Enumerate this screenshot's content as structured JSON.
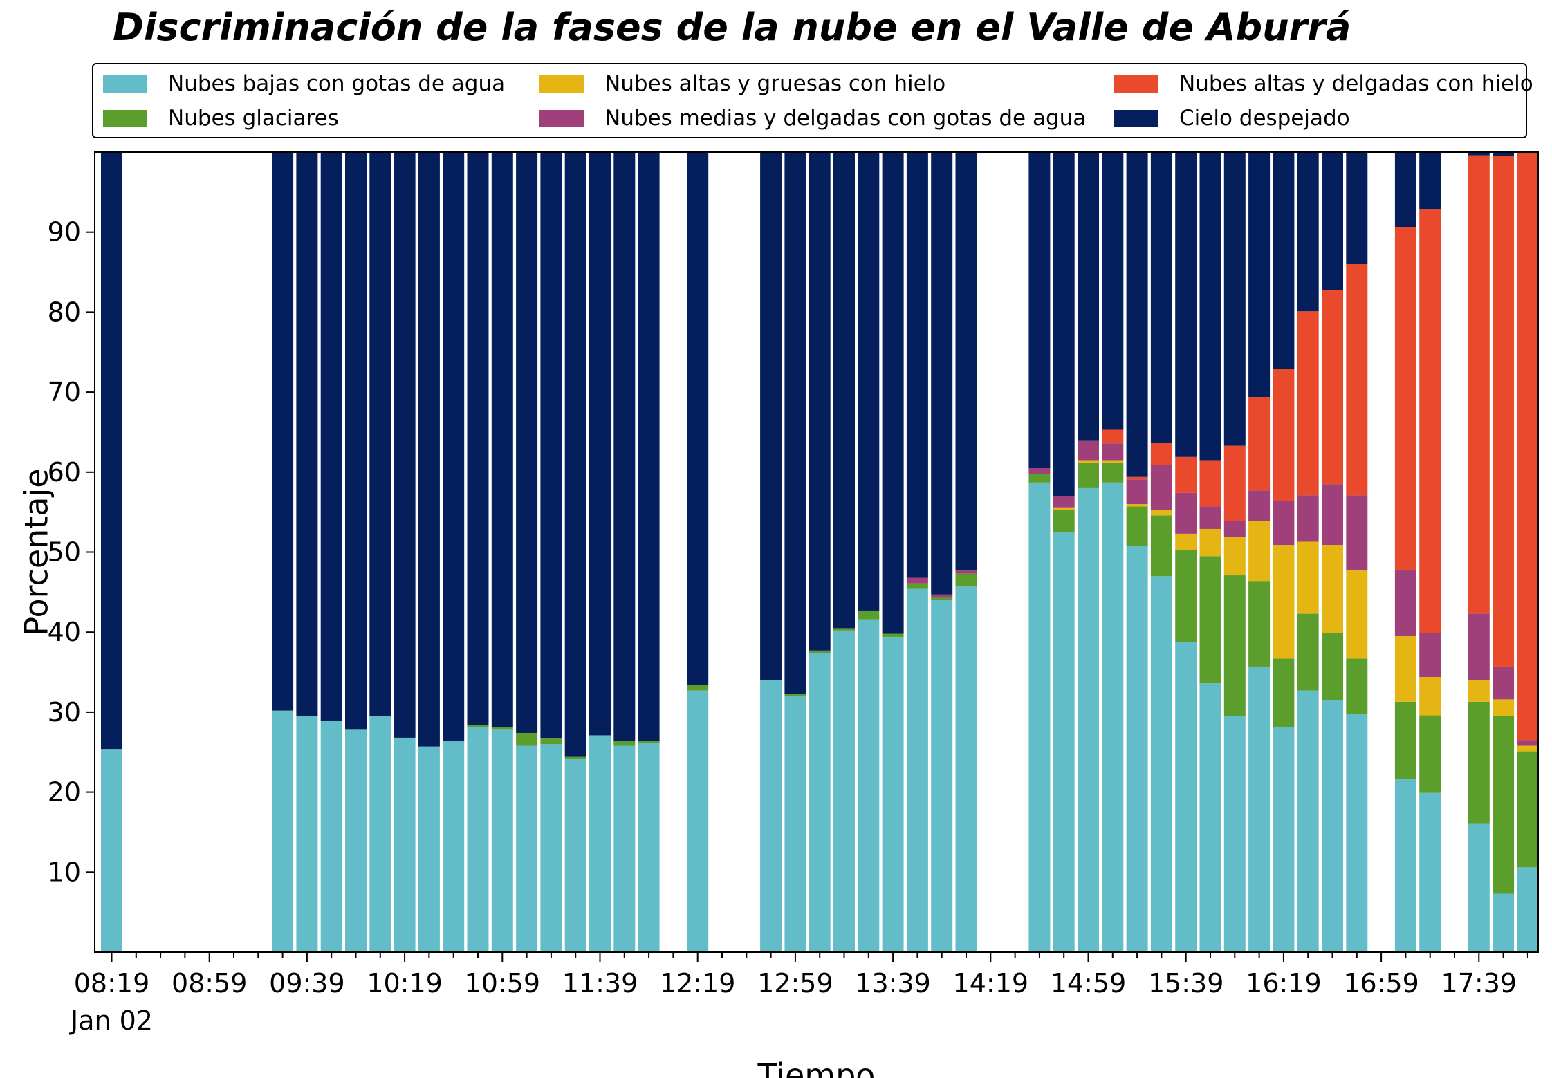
{
  "chart_data": {
    "type": "bar",
    "stacked": true,
    "title": "Discriminación de la fases de la nube en el Valle de Aburrá",
    "xlabel": "Tiempo",
    "ylabel": "Porcentaje",
    "ylim": [
      0,
      100
    ],
    "yticks": [
      10,
      20,
      30,
      40,
      50,
      60,
      70,
      80,
      90
    ],
    "grid": false,
    "legend_position": "top",
    "x_tick_labels": [
      "08:19",
      "08:59",
      "09:39",
      "10:19",
      "10:59",
      "11:39",
      "12:19",
      "12:59",
      "13:39",
      "14:19",
      "14:59",
      "15:39",
      "16:19",
      "16:59",
      "17:39"
    ],
    "x_tick_slots": [
      0,
      4,
      8,
      12,
      16,
      20,
      24,
      28,
      32,
      36,
      40,
      44,
      48,
      52,
      56
    ],
    "x_date_label": "Jan 02",
    "slot_count": 59,
    "slot_labels": [
      "08:19",
      "08:29",
      "08:39",
      "08:49",
      "08:59",
      "09:09",
      "09:19",
      "09:29",
      "09:39",
      "09:49",
      "09:59",
      "10:09",
      "10:19",
      "10:29",
      "10:39",
      "10:49",
      "10:59",
      "11:09",
      "11:19",
      "11:29",
      "11:39",
      "11:49",
      "11:59",
      "12:09",
      "12:19",
      "12:29",
      "12:39",
      "12:49",
      "12:59",
      "13:09",
      "13:19",
      "13:29",
      "13:39",
      "13:49",
      "13:59",
      "14:09",
      "14:19",
      "14:29",
      "14:39",
      "14:49",
      "14:59",
      "15:09",
      "15:19",
      "15:29",
      "15:39",
      "15:49",
      "15:59",
      "16:09",
      "16:19",
      "16:29",
      "16:39",
      "16:49",
      "16:59",
      "17:09",
      "17:19",
      "17:29",
      "17:39",
      "17:49",
      "17:59"
    ],
    "series": [
      {
        "name": "Nubes bajas con gotas de agua",
        "color": "#63bdc9"
      },
      {
        "name": "Nubes glaciares",
        "color": "#5c9e2c"
      },
      {
        "name": "Nubes altas y gruesas con hielo",
        "color": "#e5b514"
      },
      {
        "name": "Nubes medias y delgadas con gotas de agua",
        "color": "#a0407a"
      },
      {
        "name": "Nubes altas y delgadas con hielo",
        "color": "#e94a2c"
      },
      {
        "name": "Cielo despejado",
        "color": "#041f5c"
      }
    ],
    "bars": [
      {
        "slot": 0,
        "values": [
          25.4,
          0,
          0,
          0,
          0,
          74.6
        ]
      },
      {
        "slot": 7,
        "values": [
          30.2,
          0,
          0,
          0,
          0,
          69.8
        ]
      },
      {
        "slot": 8,
        "values": [
          29.5,
          0,
          0,
          0,
          0,
          70.5
        ]
      },
      {
        "slot": 9,
        "values": [
          28.9,
          0,
          0,
          0,
          0,
          71.1
        ]
      },
      {
        "slot": 10,
        "values": [
          27.8,
          0,
          0,
          0,
          0,
          72.2
        ]
      },
      {
        "slot": 11,
        "values": [
          29.5,
          0,
          0,
          0,
          0,
          70.5
        ]
      },
      {
        "slot": 12,
        "values": [
          26.8,
          0,
          0,
          0,
          0,
          73.2
        ]
      },
      {
        "slot": 13,
        "values": [
          25.7,
          0,
          0,
          0,
          0,
          74.3
        ]
      },
      {
        "slot": 14,
        "values": [
          26.4,
          0,
          0,
          0,
          0,
          73.6
        ]
      },
      {
        "slot": 15,
        "values": [
          28.1,
          0.3,
          0,
          0,
          0,
          71.6
        ]
      },
      {
        "slot": 16,
        "values": [
          27.8,
          0.3,
          0,
          0,
          0,
          71.9
        ]
      },
      {
        "slot": 17,
        "values": [
          25.8,
          1.6,
          0,
          0,
          0,
          72.6
        ]
      },
      {
        "slot": 18,
        "values": [
          26.0,
          0.7,
          0,
          0,
          0,
          73.3
        ]
      },
      {
        "slot": 19,
        "values": [
          24.1,
          0.3,
          0,
          0,
          0,
          75.6
        ]
      },
      {
        "slot": 20,
        "values": [
          27.1,
          0,
          0,
          0,
          0,
          72.9
        ]
      },
      {
        "slot": 21,
        "values": [
          25.8,
          0.6,
          0,
          0,
          0,
          73.6
        ]
      },
      {
        "slot": 22,
        "values": [
          26.1,
          0.3,
          0,
          0,
          0,
          73.6
        ]
      },
      {
        "slot": 24,
        "values": [
          32.7,
          0.7,
          0,
          0,
          0,
          66.6
        ]
      },
      {
        "slot": 27,
        "values": [
          34.0,
          0,
          0,
          0,
          0,
          66.0
        ]
      },
      {
        "slot": 28,
        "values": [
          32.0,
          0.3,
          0,
          0,
          0,
          67.7
        ]
      },
      {
        "slot": 29,
        "values": [
          37.4,
          0.3,
          0,
          0,
          0,
          62.3
        ]
      },
      {
        "slot": 30,
        "values": [
          40.2,
          0.3,
          0,
          0,
          0,
          59.5
        ]
      },
      {
        "slot": 31,
        "values": [
          41.6,
          1.1,
          0,
          0,
          0,
          57.3
        ]
      },
      {
        "slot": 32,
        "values": [
          39.4,
          0.4,
          0,
          0,
          0,
          60.2
        ]
      },
      {
        "slot": 33,
        "values": [
          45.4,
          0.7,
          0,
          0.7,
          0,
          53.2
        ]
      },
      {
        "slot": 34,
        "values": [
          44.0,
          0.3,
          0,
          0.4,
          0,
          55.3
        ]
      },
      {
        "slot": 35,
        "values": [
          45.7,
          1.6,
          0,
          0.4,
          0,
          52.3
        ]
      },
      {
        "slot": 38,
        "values": [
          58.7,
          1.1,
          0,
          0.7,
          0,
          39.5
        ]
      },
      {
        "slot": 39,
        "values": [
          52.5,
          2.8,
          0.3,
          1.4,
          0,
          43.0
        ]
      },
      {
        "slot": 40,
        "values": [
          58.0,
          3.2,
          0.3,
          2.4,
          0,
          36.1
        ]
      },
      {
        "slot": 41,
        "values": [
          58.7,
          2.5,
          0.3,
          2.1,
          1.7,
          34.7
        ]
      },
      {
        "slot": 42,
        "values": [
          50.8,
          4.9,
          0.3,
          3.1,
          0.3,
          40.6
        ]
      },
      {
        "slot": 43,
        "values": [
          47.0,
          7.6,
          0.7,
          5.6,
          2.8,
          36.3
        ]
      },
      {
        "slot": 44,
        "values": [
          38.8,
          11.5,
          2.0,
          5.1,
          4.5,
          38.1
        ]
      },
      {
        "slot": 45,
        "values": [
          33.6,
          15.9,
          3.4,
          2.8,
          5.8,
          38.5
        ]
      },
      {
        "slot": 46,
        "values": [
          29.5,
          17.6,
          4.8,
          2.0,
          9.4,
          36.7
        ]
      },
      {
        "slot": 47,
        "values": [
          35.7,
          10.7,
          7.5,
          3.8,
          11.7,
          30.6
        ]
      },
      {
        "slot": 48,
        "values": [
          28.1,
          8.6,
          14.2,
          5.5,
          16.5,
          27.1
        ]
      },
      {
        "slot": 49,
        "values": [
          32.7,
          9.6,
          9.0,
          5.8,
          23.0,
          19.9
        ]
      },
      {
        "slot": 50,
        "values": [
          31.5,
          8.4,
          11.0,
          7.6,
          24.3,
          17.2
        ]
      },
      {
        "slot": 51,
        "values": [
          29.8,
          6.9,
          11.0,
          9.4,
          28.9,
          14.0
        ]
      },
      {
        "slot": 53,
        "values": [
          21.6,
          9.7,
          8.2,
          8.3,
          42.8,
          9.4
        ]
      },
      {
        "slot": 54,
        "values": [
          19.9,
          9.7,
          4.8,
          5.5,
          53.0,
          7.1
        ]
      },
      {
        "slot": 56,
        "values": [
          16.1,
          15.2,
          2.7,
          8.3,
          57.3,
          0.4
        ]
      },
      {
        "slot": 57,
        "values": [
          7.3,
          22.2,
          2.1,
          4.1,
          63.8,
          0.5
        ]
      },
      {
        "slot": 58,
        "values": [
          10.6,
          14.5,
          0.7,
          0.7,
          73.5,
          0
        ]
      }
    ]
  }
}
